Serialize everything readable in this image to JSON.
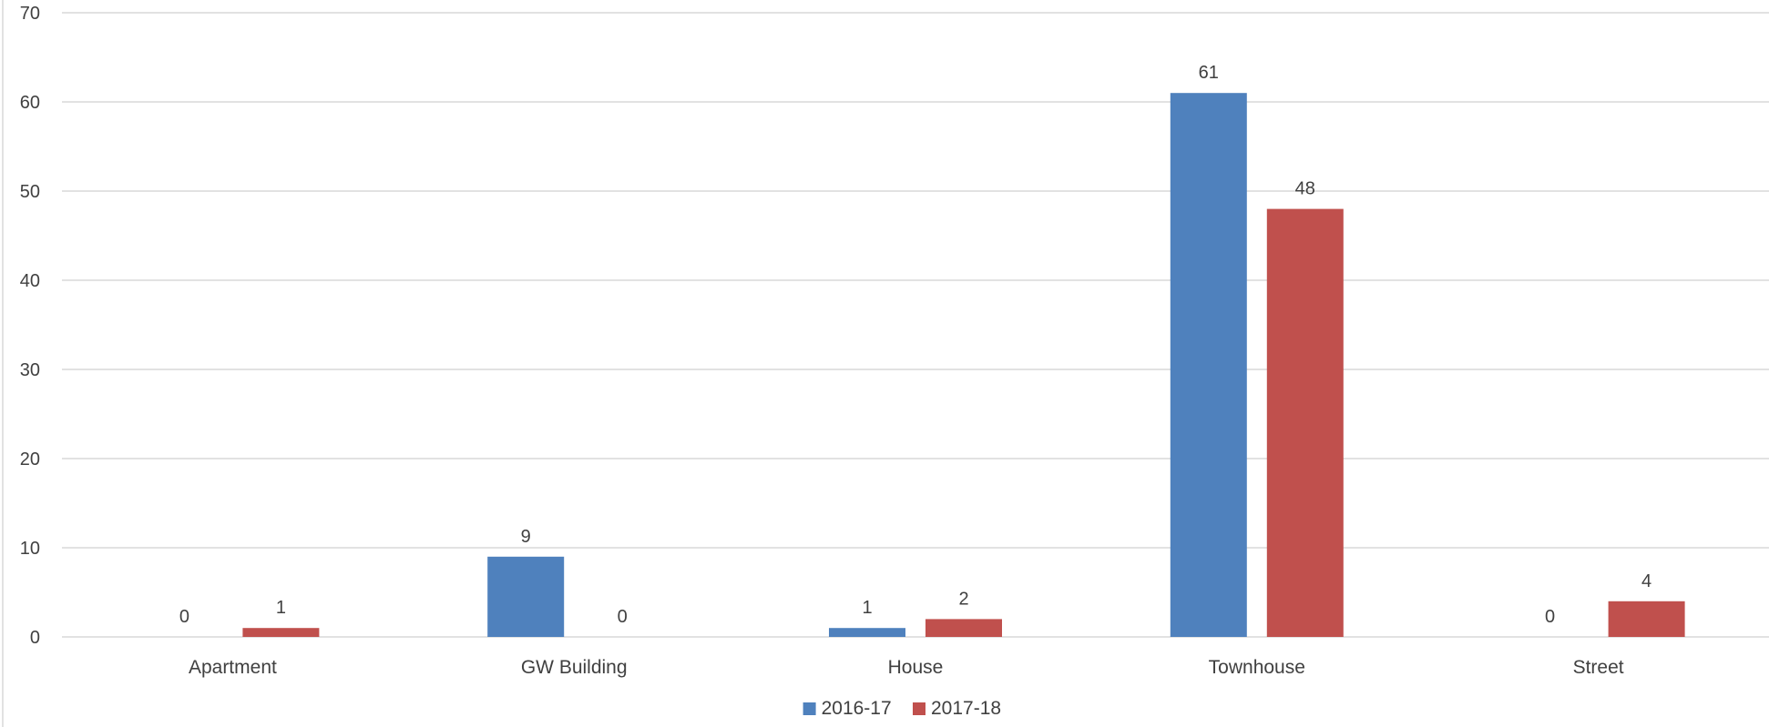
{
  "chart_data": {
    "type": "bar",
    "categories": [
      "Apartment",
      "GW Building",
      "House",
      "Townhouse",
      "Street"
    ],
    "series": [
      {
        "name": "2016-17",
        "color": "#4f81bd",
        "values": [
          0,
          9,
          1,
          61,
          0
        ]
      },
      {
        "name": "2017-18",
        "color": "#c0504d",
        "values": [
          1,
          0,
          2,
          48,
          4
        ]
      }
    ],
    "title": "",
    "xlabel": "",
    "ylabel": "",
    "ylim": [
      0,
      70
    ],
    "yticks": [
      0,
      10,
      20,
      30,
      40,
      50,
      60,
      70
    ],
    "grid": true,
    "data_labels": true,
    "legend_position": "bottom"
  }
}
